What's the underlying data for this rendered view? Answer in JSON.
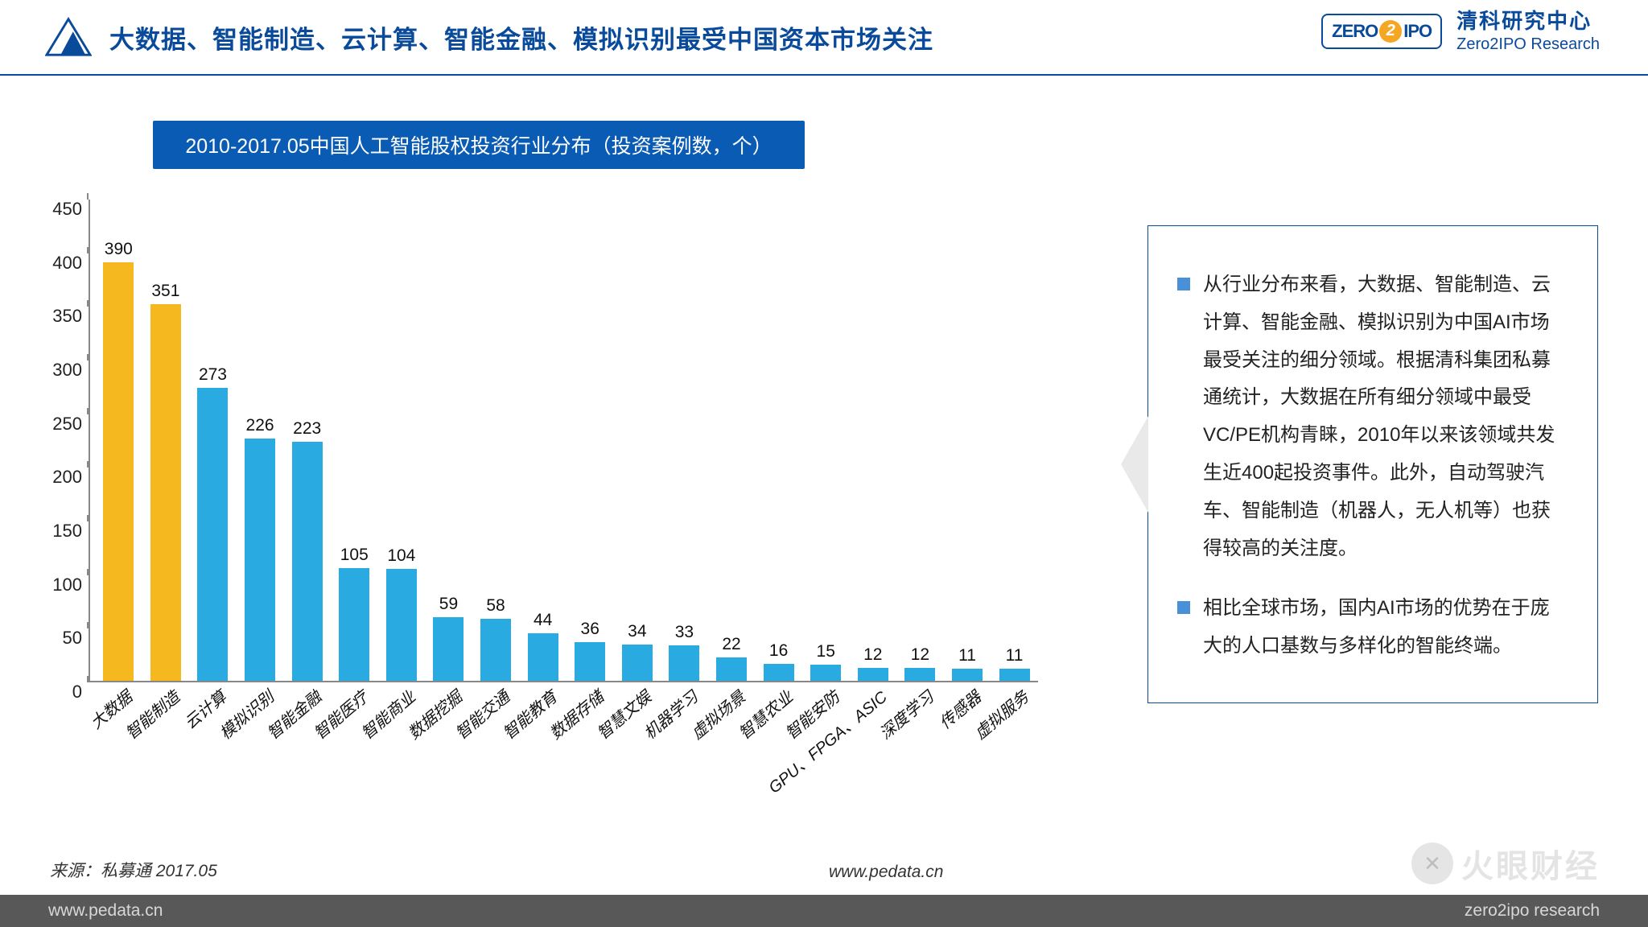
{
  "header": {
    "title": "大数据、智能制造、云计算、智能金融、模拟识别最受中国资本市场关注",
    "logo_color": "#0a4a9a",
    "brand_zero": "ZERO",
    "brand_ipo": "IPO",
    "brand_two": "2",
    "brand_cn": "清科研究中心",
    "brand_en": "Zero2IPO Research"
  },
  "chart": {
    "title": "2010-2017.05中国人工智能股权投资行业分布（投资案例数，个）",
    "type": "bar",
    "ylim": [
      0,
      450
    ],
    "ytick_step": 50,
    "categories": [
      "大数据",
      "智能制造",
      "云计算",
      "模拟识别",
      "智能金融",
      "智能医疗",
      "智能商业",
      "数据挖掘",
      "智能交通",
      "智能教育",
      "数据存储",
      "智慧文娱",
      "机器学习",
      "虚拟场景",
      "智慧农业",
      "智能安防",
      "GPU、FPGA、ASIC",
      "深度学习",
      "传感器",
      "虚拟服务"
    ],
    "values": [
      390,
      351,
      273,
      226,
      223,
      105,
      104,
      59,
      58,
      44,
      36,
      34,
      33,
      22,
      16,
      15,
      12,
      12,
      11,
      11
    ],
    "bar_colors": [
      "#f5b81e",
      "#f5b81e",
      "#29abe2",
      "#29abe2",
      "#29abe2",
      "#29abe2",
      "#29abe2",
      "#29abe2",
      "#29abe2",
      "#29abe2",
      "#29abe2",
      "#29abe2",
      "#29abe2",
      "#29abe2",
      "#29abe2",
      "#29abe2",
      "#29abe2",
      "#29abe2",
      "#29abe2",
      "#29abe2"
    ],
    "value_fontsize": 21,
    "label_fontsize": 20,
    "axis_color": "#888888",
    "background_color": "#ffffff"
  },
  "panel": {
    "items": [
      "从行业分布来看，大数据、智能制造、云计算、智能金融、模拟识别为中国AI市场最受关注的细分领域。根据清科集团私募通统计，大数据在所有细分领域中最受VC/PE机构青睐，2010年以来该领域共发生近400起投资事件。此外，自动驾驶汽车、智能制造（机器人，无人机等）也获得较高的关注度。",
      "相比全球市场，国内AI市场的优势在于庞大的人口基数与多样化的智能终端。"
    ],
    "bullet_color": "#4a90d9",
    "border_color": "#0a4a9a"
  },
  "meta": {
    "source": "来源：私募通 2017.05",
    "site": "www.pedata.cn",
    "footer_left": "www.pedata.cn",
    "footer_right": "zero2ipo research",
    "watermark_text": "火眼财经",
    "watermark_icon": "✕"
  }
}
